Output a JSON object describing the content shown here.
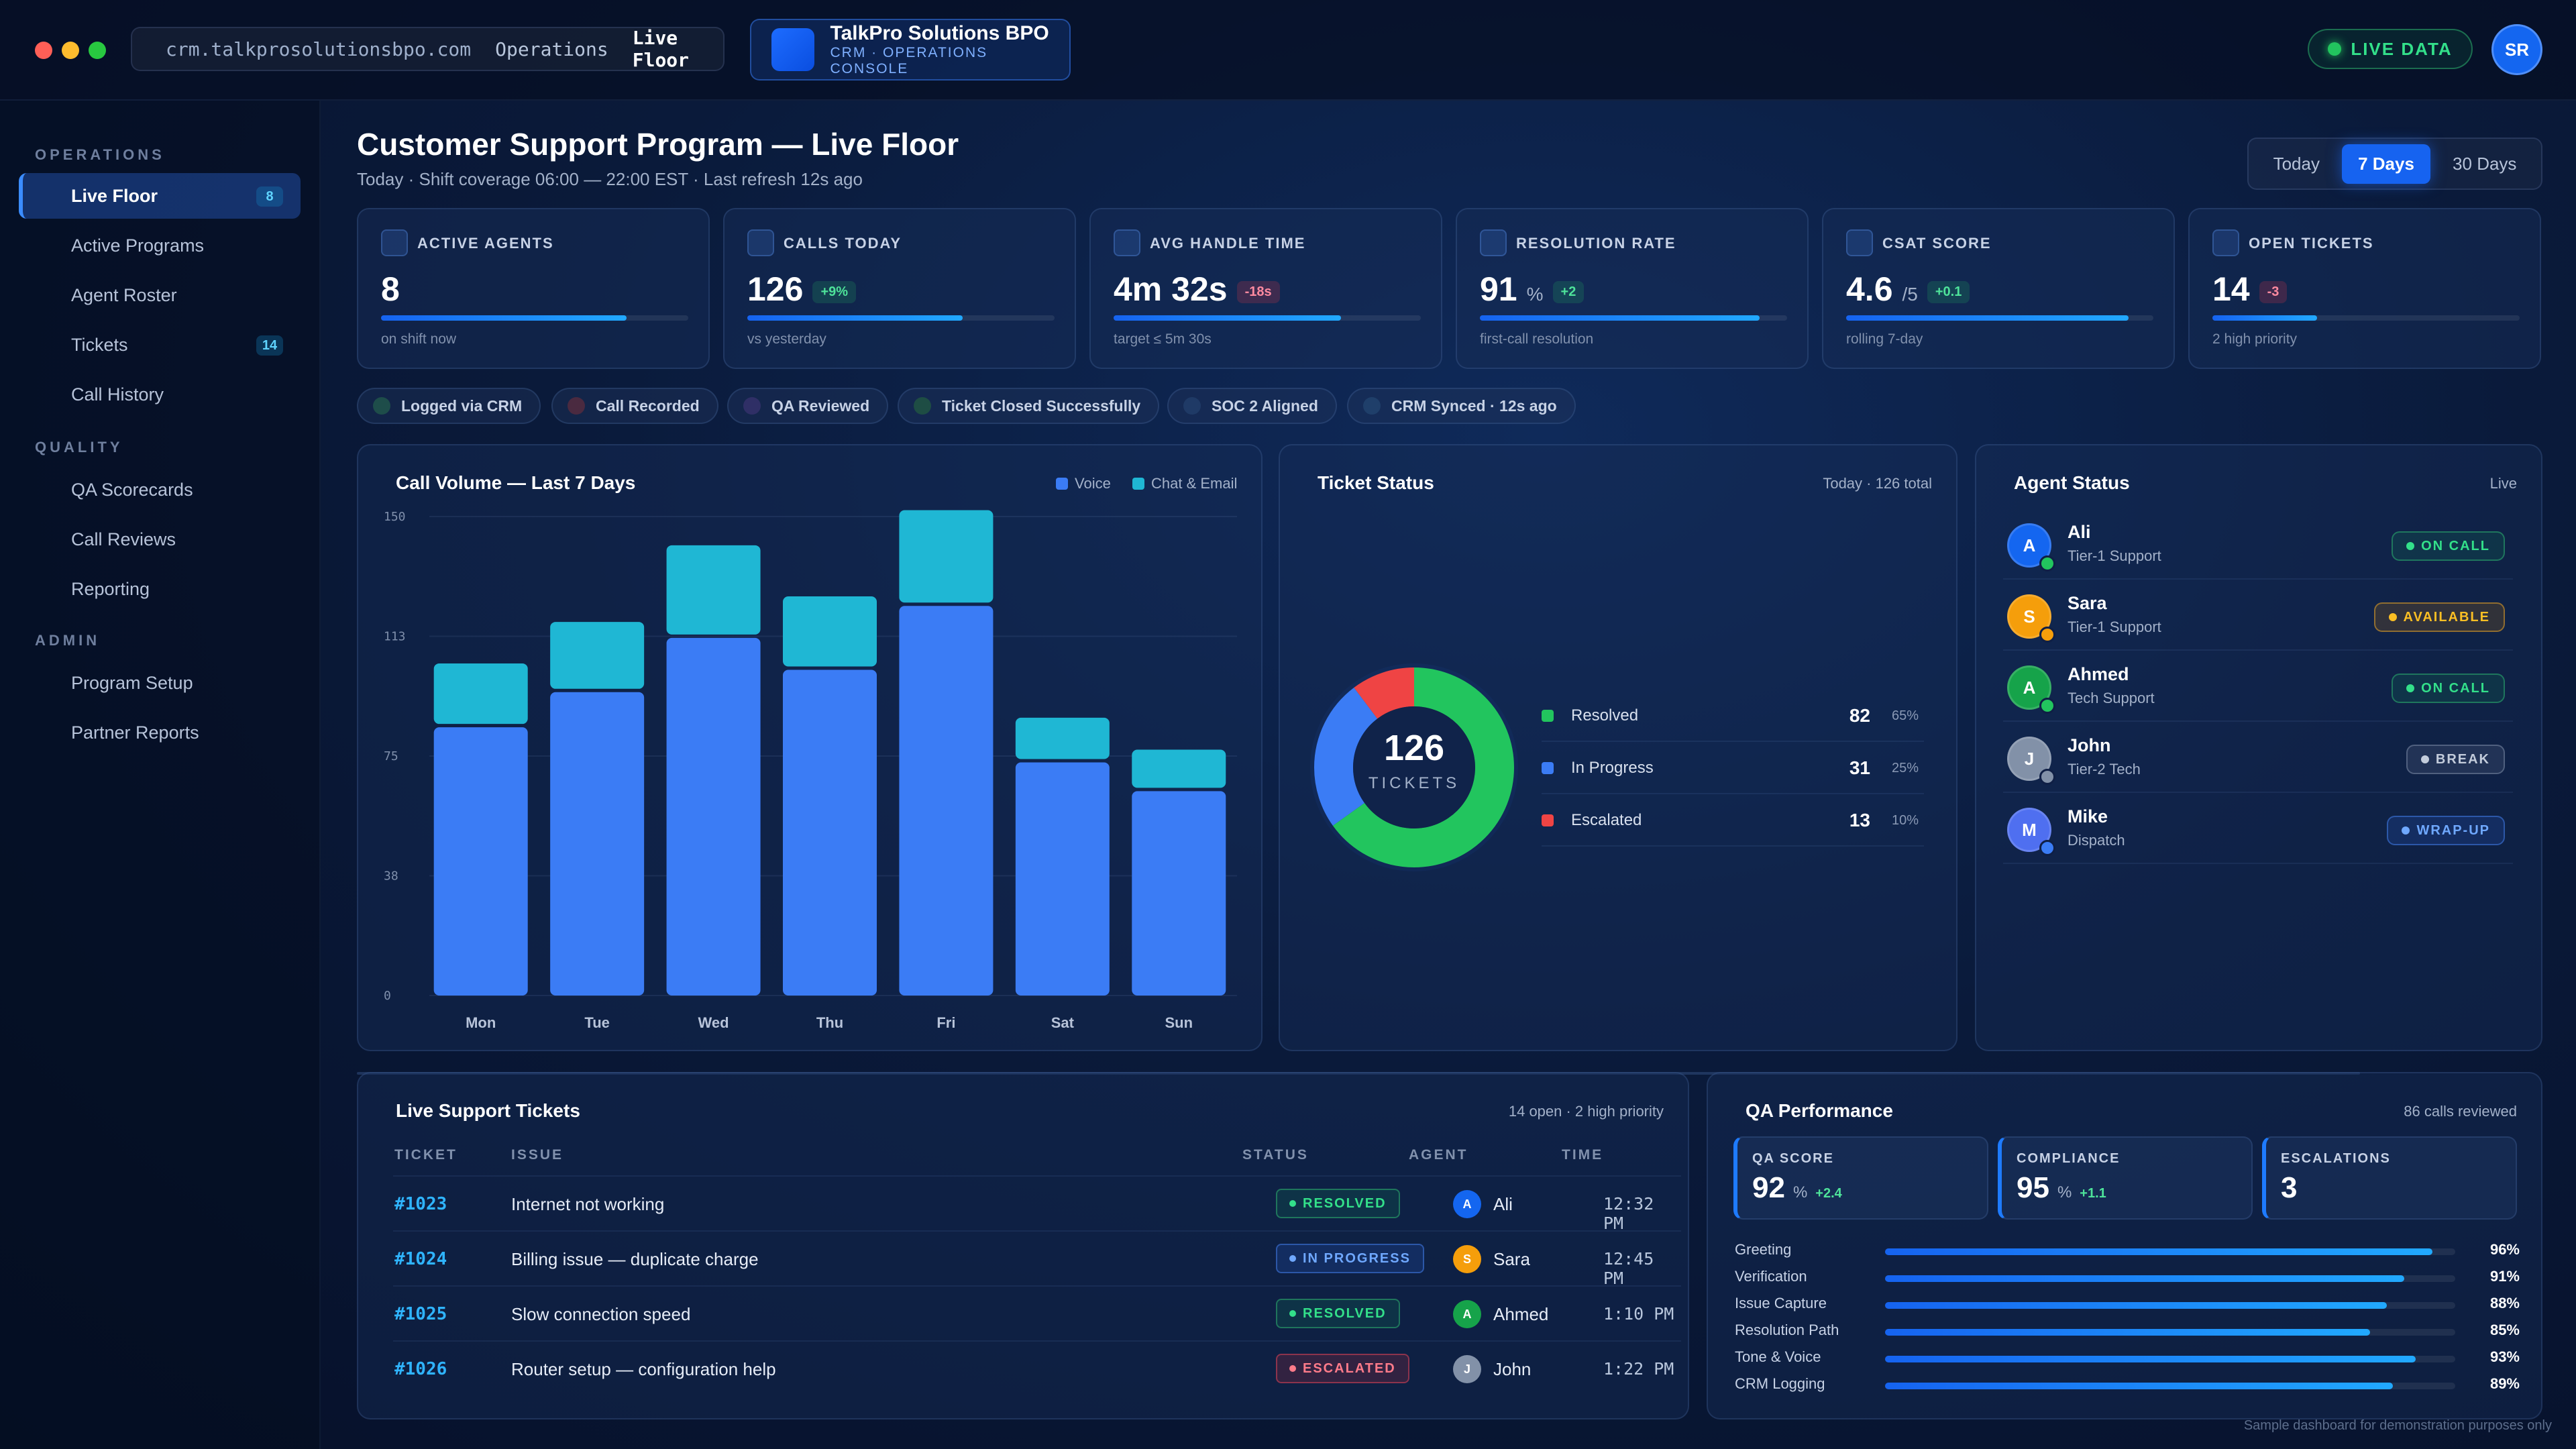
{
  "window": {
    "url": "crm.talkprosolutionsbpo.com",
    "crumb_ops": "Operations",
    "crumb_current": "Live Floor",
    "traffic_colors": [
      "#ff5f57",
      "#febc2e",
      "#28c840"
    ]
  },
  "brand": {
    "name": "TalkPro Solutions BPO",
    "subtitle": "CRM · OPERATIONS CONSOLE"
  },
  "top": {
    "live_label": "LIVE DATA",
    "user_initials": "SR"
  },
  "sidebar": {
    "sections": [
      {
        "title": "OPERATIONS",
        "items": [
          {
            "label": "Live Floor",
            "badge": "8",
            "active": true
          },
          {
            "label": "Active Programs",
            "badge": ""
          },
          {
            "label": "Agent Roster",
            "badge": ""
          },
          {
            "label": "Tickets",
            "badge": "14"
          },
          {
            "label": "Call History",
            "badge": ""
          }
        ]
      },
      {
        "title": "QUALITY",
        "items": [
          {
            "label": "QA Scorecards",
            "badge": ""
          },
          {
            "label": "Call Reviews",
            "badge": ""
          },
          {
            "label": "Reporting",
            "badge": ""
          }
        ]
      },
      {
        "title": "ADMIN",
        "items": [
          {
            "label": "Program Setup",
            "badge": ""
          },
          {
            "label": "Partner Reports",
            "badge": ""
          }
        ]
      }
    ]
  },
  "header": {
    "title": "Customer Support Program — Live Floor",
    "subtitle": "Today · Shift coverage 06:00 — 22:00 EST · Last refresh 12s ago",
    "ranges": [
      "Today",
      "7 Days",
      "30 Days"
    ],
    "active_range": "7 Days"
  },
  "kpis": [
    {
      "label": "ACTIVE AGENTS",
      "value": "8",
      "unit": "",
      "delta": "",
      "delta_type": "",
      "progress": 0.8,
      "note": "on shift now"
    },
    {
      "label": "CALLS TODAY",
      "value": "126",
      "unit": "",
      "delta": "+9%",
      "delta_type": "pos",
      "progress": 0.7,
      "note": "vs yesterday"
    },
    {
      "label": "AVG HANDLE TIME",
      "value": "4m 32s",
      "unit": "",
      "delta": "-18s",
      "delta_type": "neg",
      "progress": 0.74,
      "note": "target ≤ 5m 30s"
    },
    {
      "label": "RESOLUTION RATE",
      "value": "91",
      "unit": "%",
      "delta": "+2",
      "delta_type": "pos",
      "progress": 0.91,
      "note": "first-call resolution"
    },
    {
      "label": "CSAT SCORE",
      "value": "4.6",
      "unit": "/5",
      "delta": "+0.1",
      "delta_type": "pos",
      "progress": 0.92,
      "note": "rolling 7-day"
    },
    {
      "label": "OPEN TICKETS",
      "value": "14",
      "unit": "",
      "delta": "-3",
      "delta_type": "neg",
      "progress": 0.34,
      "note": "2 high priority"
    }
  ],
  "chips": [
    {
      "label": "Logged via CRM",
      "color": "#1e4d4a"
    },
    {
      "label": "Call Recorded",
      "color": "#4a2a40"
    },
    {
      "label": "QA Reviewed",
      "color": "#2f2f66"
    },
    {
      "label": "Ticket Closed Successfully",
      "color": "#1e4d44"
    },
    {
      "label": "SOC 2 Aligned",
      "color": "#1f3a66"
    },
    {
      "label": "CRM Synced · 12s ago",
      "color": "#1f3f6a"
    }
  ],
  "call_volume": {
    "title": "Call Volume — Last 7 Days",
    "legend_voice": "Voice",
    "legend_chat": "Chat & Email"
  },
  "chart_data": {
    "type": "bar",
    "stacked": true,
    "title": "Call Volume — Last 7 Days",
    "categories": [
      "Mon",
      "Tue",
      "Wed",
      "Thu",
      "Fri",
      "Sat",
      "Sun"
    ],
    "series": [
      {
        "name": "Voice",
        "values": [
          84,
          95,
          112,
          102,
          122,
          73,
          64
        ],
        "color": "#3b7cf5"
      },
      {
        "name": "Chat & Email",
        "values": [
          20,
          22,
          29,
          23,
          30,
          14,
          13
        ],
        "color": "#1fb7d4"
      }
    ],
    "ylim": [
      0,
      150
    ],
    "yticks": [
      "0",
      "38",
      "75",
      "113",
      "150"
    ],
    "grid": true,
    "legend": "top-right"
  },
  "ticket_status": {
    "title": "Ticket Status",
    "meta": "Today · 126 total",
    "center_value": "126",
    "center_label": "TICKETS",
    "items": [
      {
        "label": "Resolved",
        "count": "82",
        "pct": "65%",
        "value": 82,
        "color": "#22c55e"
      },
      {
        "label": "In Progress",
        "count": "31",
        "pct": "25%",
        "value": 31,
        "color": "#3b7cf5"
      },
      {
        "label": "Escalated",
        "count": "13",
        "pct": "10%",
        "value": 13,
        "color": "#ef4444"
      }
    ]
  },
  "agent_status": {
    "title": "Agent Status",
    "meta": "Live",
    "agents": [
      {
        "initial": "A",
        "name": "Ali",
        "role": "Tier-1 Support",
        "status": "ON CALL",
        "av_color": "#1466f0",
        "dot_color": "#22c55e",
        "status_color": "#33e08a",
        "status_bg": "rgba(20,120,80,0.22)",
        "status_border": "rgba(50,200,120,0.45)"
      },
      {
        "initial": "S",
        "name": "Sara",
        "role": "Tier-1 Support",
        "status": "AVAILABLE",
        "av_color": "#f59e0b",
        "dot_color": "#f59e0b",
        "status_color": "#fbbf24",
        "status_bg": "rgba(150,100,20,0.25)",
        "status_border": "rgba(240,170,40,0.5)"
      },
      {
        "initial": "A",
        "name": "Ahmed",
        "role": "Tech Support",
        "status": "ON CALL",
        "av_color": "#16a34a",
        "dot_color": "#22c55e",
        "status_color": "#33e08a",
        "status_bg": "rgba(20,120,80,0.22)",
        "status_border": "rgba(50,200,120,0.45)"
      },
      {
        "initial": "J",
        "name": "John",
        "role": "Tier-2 Tech",
        "status": "BREAK",
        "av_color": "#8291a8",
        "dot_color": "#8291a8",
        "status_color": "#c3ccdb",
        "status_bg": "rgba(120,135,160,0.18)",
        "status_border": "rgba(150,165,190,0.4)"
      },
      {
        "initial": "M",
        "name": "Mike",
        "role": "Dispatch",
        "status": "WRAP-UP",
        "av_color": "#4f6ff0",
        "dot_color": "#3b7cf5",
        "status_color": "#6fa8ff",
        "status_bg": "rgba(40,90,200,0.22)",
        "status_border": "rgba(70,130,240,0.5)"
      }
    ]
  },
  "tickets": {
    "title": "Live Support Tickets",
    "meta": "14 open · 2 high priority",
    "headers": [
      "TICKET",
      "ISSUE",
      "STATUS",
      "AGENT",
      "TIME"
    ],
    "rows": [
      {
        "id": "#1023",
        "issue": "Internet not working",
        "status": "RESOLVED",
        "agent": "Ali",
        "initial": "A",
        "time": "12:32 PM",
        "av_color": "#1466f0",
        "st_color": "#33e08a",
        "st_bg": "rgba(20,120,80,0.22)",
        "st_border": "rgba(50,200,120,0.45)"
      },
      {
        "id": "#1024",
        "issue": "Billing issue — duplicate charge",
        "status": "IN PROGRESS",
        "agent": "Sara",
        "initial": "S",
        "time": "12:45 PM",
        "av_color": "#f59e0b",
        "st_color": "#6fa8ff",
        "st_bg": "rgba(40,90,200,0.22)",
        "st_border": "rgba(70,130,240,0.5)"
      },
      {
        "id": "#1025",
        "issue": "Slow connection speed",
        "status": "RESOLVED",
        "agent": "Ahmed",
        "initial": "A",
        "time": "1:10 PM",
        "av_color": "#16a34a",
        "st_color": "#33e08a",
        "st_bg": "rgba(20,120,80,0.22)",
        "st_border": "rgba(50,200,120,0.45)"
      },
      {
        "id": "#1026",
        "issue": "Router setup — configuration help",
        "status": "ESCALATED",
        "agent": "John",
        "initial": "J",
        "time": "1:22 PM",
        "av_color": "#8291a8",
        "st_color": "#ff7b8a",
        "st_bg": "rgba(180,40,60,0.22)",
        "st_border": "rgba(230,70,90,0.5)"
      }
    ]
  },
  "qa": {
    "title": "QA Performance",
    "meta": "86 calls reviewed",
    "cards": [
      {
        "label": "QA SCORE",
        "value": "92",
        "unit": "%",
        "delta": "+2.4"
      },
      {
        "label": "COMPLIANCE",
        "value": "95",
        "unit": "%",
        "delta": "+1.1"
      },
      {
        "label": "ESCALATIONS",
        "value": "3",
        "unit": "",
        "delta": ""
      }
    ],
    "metrics": [
      {
        "name": "Greeting",
        "pct": "96%",
        "value": 0.96
      },
      {
        "name": "Verification",
        "pct": "91%",
        "value": 0.91
      },
      {
        "name": "Issue Capture",
        "pct": "88%",
        "value": 0.88
      },
      {
        "name": "Resolution Path",
        "pct": "85%",
        "value": 0.85
      },
      {
        "name": "Tone & Voice",
        "pct": "93%",
        "value": 0.93
      },
      {
        "name": "CRM Logging",
        "pct": "89%",
        "value": 0.89
      }
    ]
  },
  "footnote": "Sample dashboard for demonstration purposes only"
}
